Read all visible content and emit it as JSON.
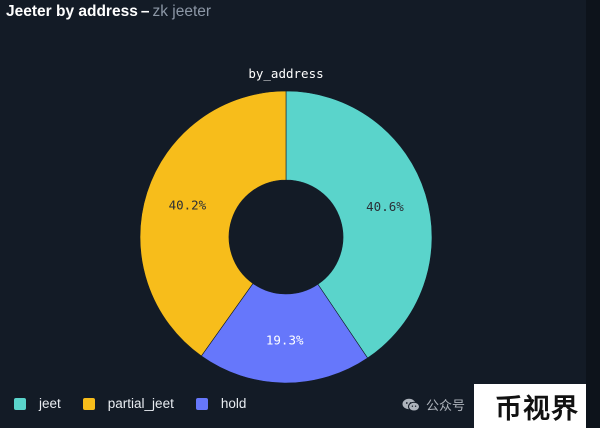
{
  "header": {
    "title": "Jeeter by address",
    "separator": "–",
    "subtitle": "zk jeeter"
  },
  "chart_data": {
    "type": "pie",
    "donut": true,
    "title": "by_address",
    "series": [
      {
        "name": "jeet",
        "value": 40.6,
        "label": "40.6%",
        "color": "#5ad4cb"
      },
      {
        "name": "hold",
        "value": 19.3,
        "label": "19.3%",
        "color": "#6677fb"
      },
      {
        "name": "partial_jeet",
        "value": 40.2,
        "label": "40.2%",
        "color": "#f7bd1b"
      }
    ],
    "legend": {
      "position": "bottom-left",
      "entries": [
        {
          "name": "jeet",
          "color": "#5ad4cb"
        },
        {
          "name": "partial_jeet",
          "color": "#f7bd1b"
        },
        {
          "name": "hold",
          "color": "#6677fb"
        }
      ]
    }
  },
  "watermark": {
    "icon": "wechat-icon",
    "text": "公众号"
  },
  "brand": {
    "text": "币视界"
  }
}
